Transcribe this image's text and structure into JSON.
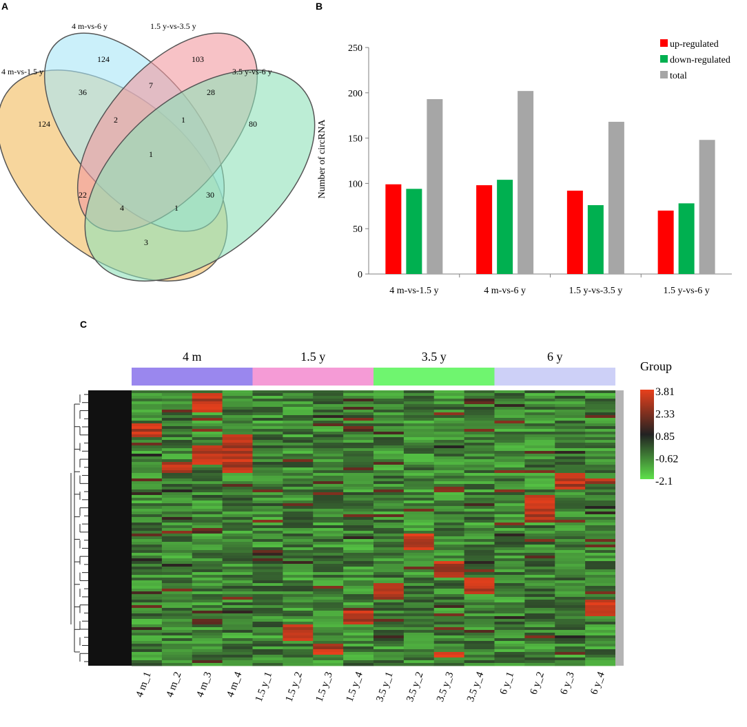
{
  "panel_labels": {
    "a": "A",
    "b": "B",
    "c": "C"
  },
  "chart_data": [
    {
      "type": "venn",
      "panel": "A",
      "sets": [
        "4 m-vs-1.5 y",
        "4 m-vs-6 y",
        "1.5 y-vs-3.5 y",
        "3.5 y-vs-6 y"
      ],
      "colors": [
        "#f6cf8c",
        "#a9e6f6",
        "#f29aa0",
        "#8fe1b9"
      ],
      "regions": [
        {
          "sets": [
            "4 m-vs-1.5 y"
          ],
          "value": "124"
        },
        {
          "sets": [
            "4 m-vs-6 y"
          ],
          "value": "124"
        },
        {
          "sets": [
            "1.5 y-vs-3.5 y"
          ],
          "value": "103"
        },
        {
          "sets": [
            "3.5 y-vs-6 y"
          ],
          "value": "80"
        },
        {
          "sets": [
            "4 m-vs-1.5 y",
            "4 m-vs-6 y"
          ],
          "value": "36"
        },
        {
          "sets": [
            "4 m-vs-6 y",
            "1.5 y-vs-3.5 y"
          ],
          "value": "7"
        },
        {
          "sets": [
            "1.5 y-vs-3.5 y",
            "3.5 y-vs-6 y"
          ],
          "value": "28"
        },
        {
          "sets": [
            "4 m-vs-1.5 y",
            "4 m-vs-6 y",
            "1.5 y-vs-3.5 y"
          ],
          "value": "2"
        },
        {
          "sets": [
            "4 m-vs-6 y",
            "1.5 y-vs-3.5 y",
            "3.5 y-vs-6 y"
          ],
          "value": "1"
        },
        {
          "sets": [
            "4 m-vs-1.5 y",
            "4 m-vs-6 y",
            "1.5 y-vs-3.5 y",
            "3.5 y-vs-6 y"
          ],
          "value": "1"
        },
        {
          "sets": [
            "4 m-vs-1.5 y",
            "1.5 y-vs-3.5 y"
          ],
          "value": "22"
        },
        {
          "sets": [
            "4 m-vs-6 y",
            "3.5 y-vs-6 y"
          ],
          "value": "30"
        },
        {
          "sets": [
            "4 m-vs-1.5 y",
            "1.5 y-vs-3.5 y",
            "3.5 y-vs-6 y"
          ],
          "value": "4"
        },
        {
          "sets": [
            "4 m-vs-1.5 y",
            "4 m-vs-6 y",
            "3.5 y-vs-6 y"
          ],
          "value": "1"
        },
        {
          "sets": [
            "4 m-vs-1.5 y",
            "3.5 y-vs-6 y"
          ],
          "value": "3"
        }
      ]
    },
    {
      "type": "bar",
      "panel": "B",
      "categories": [
        "4 m-vs-1.5 y",
        "4 m-vs-6 y",
        "1.5 y-vs-3.5 y",
        "1.5 y-vs-6 y"
      ],
      "series": [
        {
          "name": "up-regulated",
          "color": "#ff0000",
          "values": [
            99,
            98,
            92,
            70
          ]
        },
        {
          "name": "down-regulated",
          "color": "#00b050",
          "values": [
            94,
            104,
            76,
            78
          ]
        },
        {
          "name": "total",
          "color": "#a6a6a6",
          "values": [
            193,
            202,
            168,
            148
          ]
        }
      ],
      "ylabel": "Number of circRNA",
      "xlabel": "",
      "ylim": [
        0,
        250
      ],
      "yticks": [
        "0",
        "50",
        "100",
        "150",
        "200",
        "250"
      ],
      "legend_position": "top-right",
      "grid": false
    },
    {
      "type": "heatmap",
      "panel": "C",
      "groups": [
        {
          "label": "4 m",
          "color": "#9a87ee"
        },
        {
          "label": "1.5 y",
          "color": "#f59bd6"
        },
        {
          "label": "3.5 y",
          "color": "#6ff56f"
        },
        {
          "label": "6 y",
          "color": "#cdd0f7"
        }
      ],
      "columns": [
        "4 m_1",
        "4 m_2",
        "4 m_3",
        "4 m_4",
        "1.5 y_1",
        "1.5 y_2",
        "1.5 y_3",
        "1.5 y_4",
        "3.5 y_1",
        "3.5 y_2",
        "3.5 y_3",
        "3.5 y_4",
        "6 y_1",
        "6 y_2",
        "6 y_3",
        "6 y_4"
      ],
      "row_count": 100,
      "legend_title": "Group",
      "scale_ticks": [
        "3.81",
        "2.33",
        "0.85",
        "-0.62",
        "-2.1"
      ],
      "scale_range": [
        -2.1,
        3.81
      ],
      "scale_colors": {
        "high": "#e8401c",
        "mid": "#222222",
        "low": "#5ee04a"
      }
    }
  ]
}
